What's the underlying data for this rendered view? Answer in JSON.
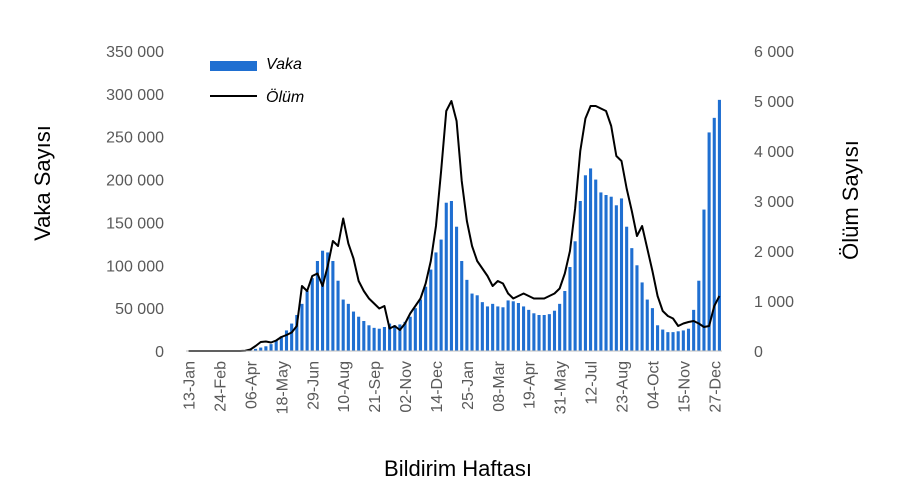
{
  "chart_data": {
    "type": "bar",
    "xlabel": "Bildirim Haftası",
    "ylabel_left": "Vaka Sayısı",
    "ylabel_right": "Ölüm Sayısı",
    "ylim_left": [
      0,
      350000
    ],
    "ylim_right": [
      0,
      6000
    ],
    "yticks_left": [
      "0",
      "50 000",
      "100 000",
      "150 000",
      "200 000",
      "250 000",
      "300 000",
      "350 000"
    ],
    "yticks_right": [
      "0",
      "1 000",
      "2 000",
      "3 000",
      "4 000",
      "5 000",
      "6 000"
    ],
    "x_tick_labels": [
      {
        "label": "13-Jan",
        "week": 1
      },
      {
        "label": "24-Feb",
        "week": 7
      },
      {
        "label": "06-Apr",
        "week": 13
      },
      {
        "label": "18-May",
        "week": 19
      },
      {
        "label": "29-Jun",
        "week": 25
      },
      {
        "label": "10-Aug",
        "week": 31
      },
      {
        "label": "21-Sep",
        "week": 37
      },
      {
        "label": "02-Nov",
        "week": 43
      },
      {
        "label": "14-Dec",
        "week": 49
      },
      {
        "label": "25-Jan",
        "week": 55
      },
      {
        "label": "08-Mar",
        "week": 61
      },
      {
        "label": "19-Apr",
        "week": 67
      },
      {
        "label": "31-May",
        "week": 73
      },
      {
        "label": "12-Jul",
        "week": 79
      },
      {
        "label": "23-Aug",
        "week": 85
      },
      {
        "label": "04-Oct",
        "week": 91
      },
      {
        "label": "15-Nov",
        "week": 97
      },
      {
        "label": "27-Dec",
        "week": 103
      }
    ],
    "series": [
      {
        "name": "Vaka",
        "kind": "bar",
        "axis": "left",
        "color": "#1f6fd1",
        "values": [
          0,
          0,
          0,
          0,
          0,
          0,
          0,
          0,
          0,
          0,
          0,
          200,
          1000,
          2500,
          4000,
          5500,
          8000,
          12000,
          17000,
          24000,
          32000,
          42000,
          55000,
          70000,
          85000,
          105000,
          117000,
          115000,
          105000,
          82000,
          60000,
          55000,
          46000,
          40000,
          35000,
          30000,
          27000,
          26000,
          28000,
          32000,
          30000,
          31000,
          34000,
          40000,
          50000,
          60000,
          75000,
          95000,
          115000,
          130000,
          173000,
          175000,
          145000,
          105000,
          83000,
          67000,
          65000,
          57000,
          52000,
          55000,
          52000,
          51000,
          59000,
          58000,
          56000,
          52000,
          48000,
          44000,
          42000,
          42000,
          43000,
          47000,
          55000,
          70000,
          98000,
          128000,
          175000,
          205000,
          213000,
          200000,
          185000,
          182000,
          180000,
          170000,
          178000,
          145000,
          120000,
          100000,
          80000,
          60000,
          50000,
          30000,
          25000,
          22000,
          22000,
          23000,
          24000,
          26000,
          48000,
          82000,
          165000,
          255000,
          272000,
          293000
        ]
      },
      {
        "name": "Ölüm",
        "kind": "line",
        "axis": "right",
        "color": "#000000",
        "values": [
          0,
          0,
          0,
          0,
          0,
          0,
          0,
          0,
          0,
          0,
          0,
          5,
          30,
          100,
          180,
          190,
          170,
          210,
          280,
          320,
          370,
          500,
          1300,
          1200,
          1500,
          1550,
          1300,
          1700,
          2200,
          2100,
          2650,
          2150,
          1850,
          1400,
          1200,
          1050,
          950,
          850,
          900,
          450,
          500,
          420,
          550,
          750,
          900,
          1050,
          1350,
          1800,
          2500,
          3600,
          4800,
          5000,
          4600,
          3400,
          2600,
          2100,
          1800,
          1650,
          1500,
          1300,
          1400,
          1350,
          1150,
          1050,
          1100,
          1150,
          1100,
          1050,
          1050,
          1050,
          1100,
          1150,
          1250,
          1550,
          2000,
          2850,
          4000,
          4650,
          4900,
          4900,
          4850,
          4800,
          4500,
          3900,
          3800,
          3250,
          2800,
          2300,
          2500,
          2050,
          1600,
          1100,
          800,
          700,
          650,
          500,
          550,
          580,
          600,
          550,
          480,
          500,
          900,
          1100
        ]
      }
    ],
    "legend": {
      "placement": "top-left",
      "entries": [
        "Vaka",
        "Ölüm"
      ]
    },
    "grid": false
  }
}
